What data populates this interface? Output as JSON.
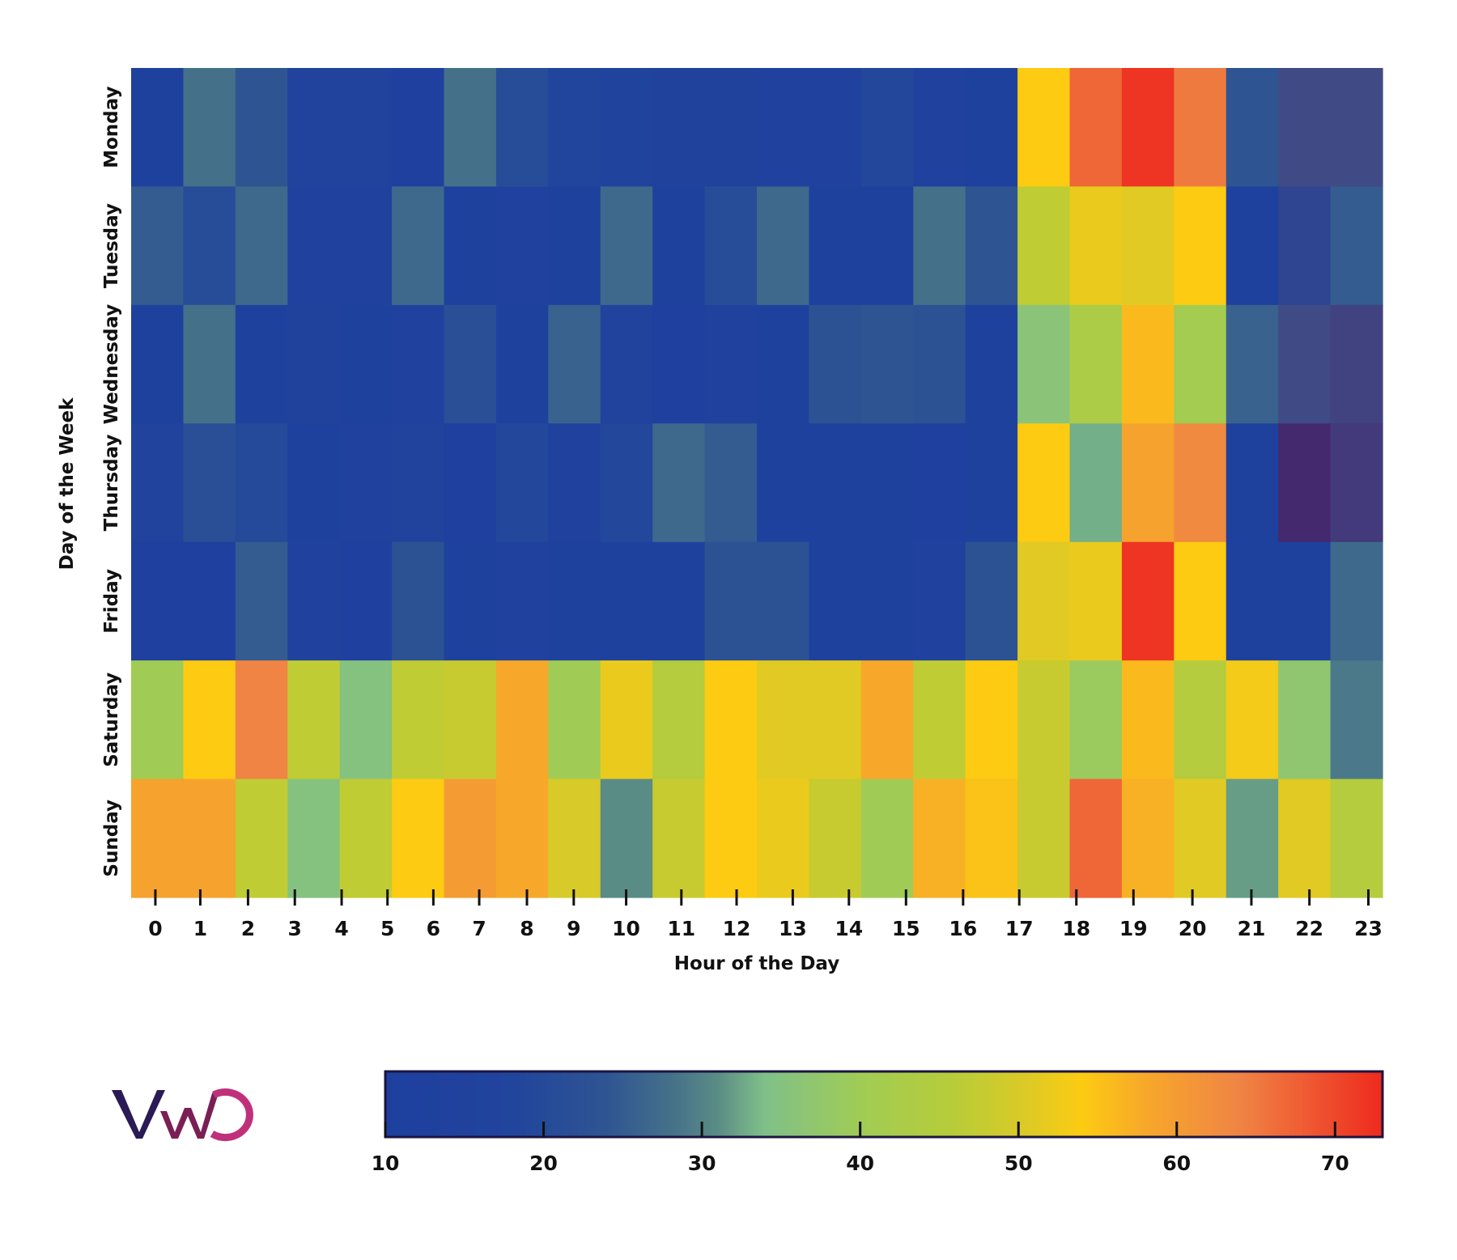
{
  "chart_data": {
    "type": "heatmap",
    "title": "",
    "xlabel": "Hour of the Day",
    "ylabel": "Day of the Week",
    "x": [
      0,
      1,
      2,
      3,
      4,
      5,
      6,
      7,
      8,
      9,
      10,
      11,
      12,
      13,
      14,
      15,
      16,
      17,
      18,
      19,
      20,
      21,
      22,
      23
    ],
    "x_tick_labels": [
      "0",
      "1",
      "2",
      "3",
      "4",
      "5",
      "6",
      "7",
      "8",
      "9",
      "10",
      "11",
      "12",
      "13",
      "14",
      "15",
      "16",
      "17",
      "18",
      "19",
      "20",
      "21",
      "22",
      "23"
    ],
    "y": [
      "Monday",
      "Tuesday",
      "Wednesday",
      "Thursday",
      "Friday",
      "Saturday",
      "Sunday"
    ],
    "values": [
      [
        13,
        28,
        24,
        17,
        17,
        12,
        28,
        21,
        18,
        16,
        15,
        15,
        14,
        14,
        19,
        14,
        13,
        54,
        67,
        72,
        65,
        24,
        8,
        8
      ],
      [
        25,
        21,
        27,
        14,
        14,
        27,
        13,
        14,
        13,
        27,
        13,
        21,
        27,
        13,
        13,
        28,
        24,
        47,
        52,
        51,
        54,
        13,
        9,
        25
      ],
      [
        13,
        28,
        13,
        15,
        13,
        14,
        22,
        13,
        26,
        17,
        12,
        14,
        13,
        23,
        24,
        23,
        13,
        36,
        43,
        56,
        41,
        26,
        8,
        7
      ],
      [
        17,
        22,
        20,
        13,
        14,
        17,
        12,
        19,
        14,
        19,
        27,
        25,
        13,
        13,
        13,
        12,
        13,
        54,
        33,
        59,
        63,
        13,
        4,
        6
      ],
      [
        12,
        12,
        25,
        14,
        12,
        23,
        13,
        14,
        13,
        13,
        13,
        23,
        23,
        13,
        13,
        14,
        23,
        51,
        52,
        72,
        54,
        13,
        13,
        27
      ],
      [
        40,
        54,
        64,
        47,
        35,
        47,
        48,
        58,
        40,
        52,
        45,
        54,
        51,
        51,
        58,
        47,
        54,
        48,
        39,
        56,
        45,
        53,
        37,
        29
      ],
      [
        59,
        59,
        47,
        35,
        47,
        54,
        60,
        58,
        50,
        31,
        48,
        54,
        52,
        48,
        40,
        57,
        55,
        48,
        67,
        57,
        51,
        32,
        51,
        45
      ]
    ],
    "colorbar": {
      "range": [
        10,
        73
      ],
      "ticks": [
        10,
        20,
        30,
        40,
        50,
        60,
        70
      ],
      "tick_labels": [
        "10",
        "20",
        "30",
        "40",
        "50",
        "60",
        "70"
      ],
      "colormap": [
        "#44296f",
        "#404a85",
        "#1e3f9e",
        "#21449d",
        "#2e5592",
        "#44708a",
        "#5a8c86",
        "#80c089",
        "#a0cc55",
        "#b8cc38",
        "#d8ca28",
        "#fccb12",
        "#f7a82a",
        "#ef8444",
        "#ee2a1e"
      ]
    },
    "grid": false,
    "legend": "bottom colorbar"
  },
  "logo": {
    "text": "VWO",
    "colors": [
      "#2a1a55",
      "#7a1f55",
      "#c0307a"
    ]
  }
}
